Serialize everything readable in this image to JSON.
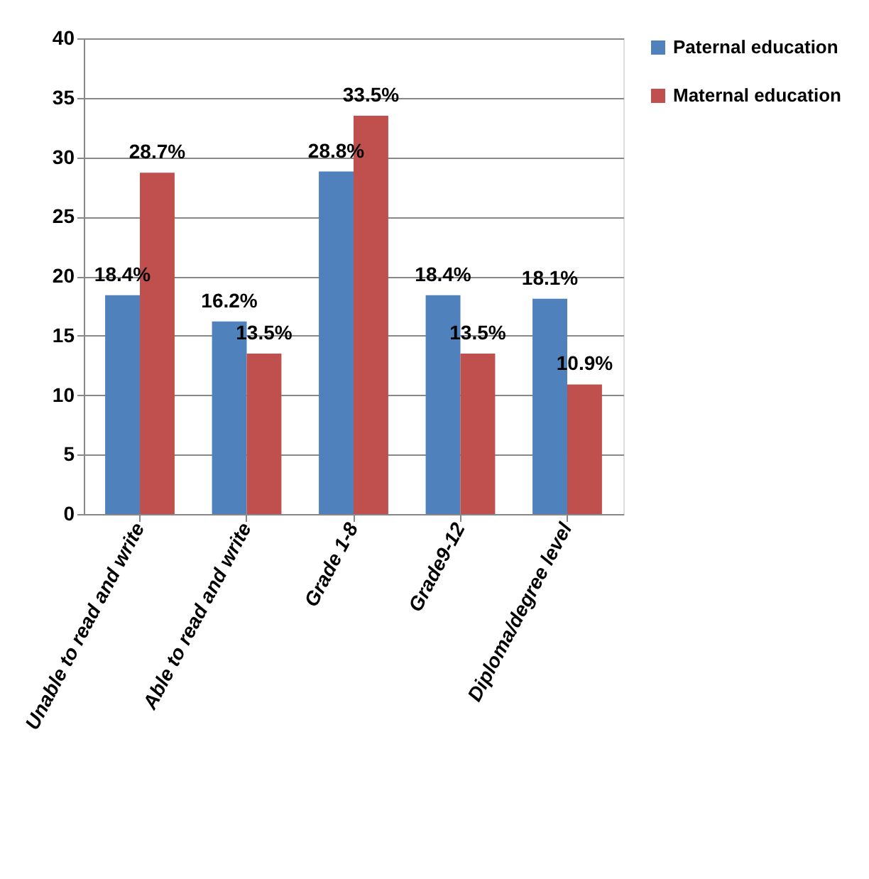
{
  "chart_data": {
    "type": "bar",
    "categories": [
      "Unable to read and write",
      "Able to read and write",
      "Grade 1-8",
      "Grade9-12",
      "Diploma/degree level"
    ],
    "series": [
      {
        "name": "Paternal education",
        "color": "#4f81bd",
        "values": [
          18.4,
          16.2,
          28.8,
          18.4,
          18.1
        ],
        "value_labels": [
          "18.4%",
          "16.2%",
          "28.8%",
          "18.4%",
          "18.1%"
        ]
      },
      {
        "name": "Maternal education",
        "color": "#c0504d",
        "values": [
          28.7,
          13.5,
          33.5,
          13.5,
          10.9
        ],
        "value_labels": [
          "28.7%",
          "13.5%",
          "33.5%",
          "13.5%",
          "10.9%"
        ]
      }
    ],
    "ylim": [
      0,
      40
    ],
    "yticks": [
      0,
      5,
      10,
      15,
      20,
      25,
      30,
      35,
      40
    ],
    "grid": "y",
    "legend": "right"
  }
}
